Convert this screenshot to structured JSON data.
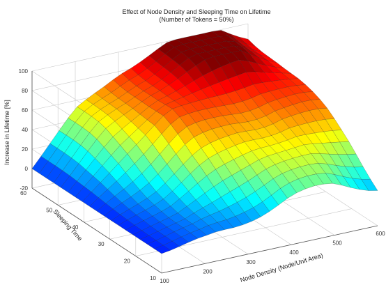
{
  "chart_data": {
    "type": "surface3d",
    "title": "Effect of Node Density and Sleeping Time on Lifetime",
    "subtitle": "(Number of Tokens = 50%)",
    "xlabel": "Node Density (Node/Unit Area)",
    "ylabel": "Sleeping Time",
    "zlabel": "Increase in Lifetime [%]",
    "x_range": [
      100,
      600
    ],
    "y_range": [
      10,
      60
    ],
    "z_range": [
      -20,
      100
    ],
    "x_ticks": [
      "100",
      "200",
      "300",
      "400",
      "500",
      "600"
    ],
    "y_ticks": [
      "10",
      "20",
      "30",
      "40",
      "50",
      "60"
    ],
    "z_ticks": [
      "-20",
      "0",
      "20",
      "40",
      "60",
      "80",
      "100"
    ],
    "colormap": "jet",
    "grid": true,
    "surface_samples": {
      "x": [
        100,
        200,
        300,
        400,
        500,
        600
      ],
      "y": [
        10,
        20,
        30,
        40,
        50,
        60
      ],
      "z_rows_by_y": [
        [
          0,
          5,
          18,
          28,
          30,
          22
        ],
        [
          0,
          10,
          32,
          48,
          52,
          45
        ],
        [
          0,
          22,
          48,
          65,
          70,
          62
        ],
        [
          0,
          38,
          72,
          78,
          82,
          75
        ],
        [
          0,
          48,
          78,
          92,
          105,
          85
        ],
        [
          0,
          50,
          80,
          95,
          108,
          88
        ]
      ]
    }
  }
}
